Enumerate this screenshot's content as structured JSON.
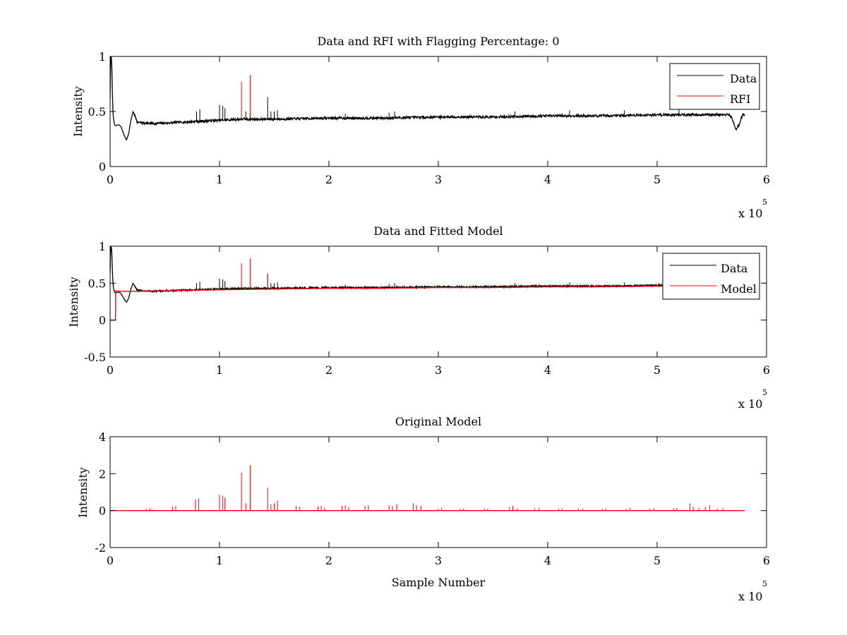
{
  "figure": {
    "background": "#ffffff",
    "axis_color": "#000000",
    "data_color": "#000000",
    "rfi_color": "#ff0000"
  },
  "chart_data": [
    {
      "type": "line",
      "title": "Data and RFI with Flagging Percentage: 0",
      "xlabel": "",
      "ylabel": "Intensity",
      "xlim": [
        0,
        6
      ],
      "ylim": [
        0,
        1
      ],
      "x_ticks": [
        "0",
        "1",
        "2",
        "3",
        "4",
        "5",
        "6"
      ],
      "y_ticks": [
        "0",
        "0.5",
        "1"
      ],
      "x_multiplier": {
        "base": "x 10",
        "exponent": "5"
      },
      "grid": false,
      "legend": {
        "position": "top-right",
        "entries": [
          "Data",
          "RFI"
        ]
      },
      "series": [
        {
          "name": "Data",
          "color": "#000000",
          "x": [
            0,
            0.005,
            0.01,
            0.015,
            0.02,
            0.025,
            0.03,
            0.04,
            0.05,
            0.08,
            0.1,
            0.13,
            0.15,
            0.17,
            0.19,
            0.21,
            0.25,
            0.4,
            0.6,
            0.8,
            1.0,
            1.2,
            1.5,
            2.0,
            2.5,
            3.0,
            3.5,
            4.0,
            4.5,
            5.0,
            5.5,
            5.65,
            5.68,
            5.72,
            5.75,
            5.78,
            5.8
          ],
          "y": [
            0.62,
            0.98,
            1.0,
            0.95,
            0.7,
            0.52,
            0.44,
            0.38,
            0.37,
            0.38,
            0.36,
            0.28,
            0.24,
            0.3,
            0.42,
            0.5,
            0.4,
            0.39,
            0.4,
            0.41,
            0.42,
            0.43,
            0.43,
            0.44,
            0.44,
            0.45,
            0.45,
            0.46,
            0.46,
            0.47,
            0.47,
            0.47,
            0.45,
            0.34,
            0.38,
            0.47,
            0.47
          ],
          "spikes_x": [
            0.79,
            0.82,
            1.0,
            1.03,
            1.05,
            1.2,
            1.24,
            1.28,
            1.44,
            1.47,
            1.5,
            1.53,
            2.15,
            2.55,
            2.6,
            3.7,
            4.2,
            4.7,
            5.2
          ],
          "spikes_y": [
            0.5,
            0.52,
            0.56,
            0.55,
            0.53,
            0.5,
            0.5,
            0.48,
            0.63,
            0.5,
            0.5,
            0.51,
            0.48,
            0.49,
            0.5,
            0.5,
            0.51,
            0.51,
            0.52
          ]
        },
        {
          "name": "RFI",
          "color": "#ff0000",
          "spikes_x": [
            1.2,
            1.28
          ],
          "spikes_y": [
            0.77,
            0.83
          ]
        }
      ]
    },
    {
      "type": "line",
      "title": "Data and Fitted Model",
      "xlabel": "",
      "ylabel": "Intensity",
      "xlim": [
        0,
        6
      ],
      "ylim": [
        -0.5,
        1
      ],
      "x_ticks": [
        "0",
        "1",
        "2",
        "3",
        "4",
        "5",
        "6"
      ],
      "y_ticks": [
        "-0.5",
        "0",
        "0.5",
        "1"
      ],
      "x_multiplier": {
        "base": "x 10",
        "exponent": "5"
      },
      "grid": false,
      "legend": {
        "position": "top-right",
        "entries": [
          "Data",
          "Model"
        ]
      },
      "series": [
        {
          "name": "Data",
          "color": "#000000",
          "x": [
            0,
            0.005,
            0.01,
            0.015,
            0.02,
            0.025,
            0.03,
            0.04,
            0.05,
            0.08,
            0.1,
            0.13,
            0.15,
            0.17,
            0.19,
            0.21,
            0.25,
            0.4,
            0.6,
            0.8,
            1.0,
            1.2,
            1.5,
            2.0,
            2.5,
            3.0,
            3.5,
            4.0,
            4.5,
            5.0,
            5.1
          ],
          "y": [
            0.62,
            0.98,
            1.0,
            0.95,
            0.7,
            0.52,
            0.44,
            0.38,
            0.37,
            0.38,
            0.36,
            0.28,
            0.24,
            0.3,
            0.42,
            0.5,
            0.4,
            0.39,
            0.4,
            0.41,
            0.42,
            0.43,
            0.43,
            0.44,
            0.44,
            0.45,
            0.45,
            0.46,
            0.46,
            0.47,
            0.47
          ],
          "spikes_x": [
            0.79,
            0.82,
            1.0,
            1.03,
            1.05,
            1.44,
            1.47,
            1.5,
            1.53,
            2.15,
            2.55,
            2.6,
            3.7,
            4.2,
            4.7
          ],
          "spikes_y": [
            0.5,
            0.52,
            0.56,
            0.55,
            0.53,
            0.63,
            0.5,
            0.5,
            0.51,
            0.48,
            0.49,
            0.5,
            0.5,
            0.51,
            0.51
          ]
        },
        {
          "name": "Model",
          "color": "#ff0000",
          "x": [
            0,
            0.05,
            0.05,
            0.08,
            0.3,
            0.6,
            1.0,
            1.5,
            2.0,
            2.5,
            3.0,
            3.5,
            4.0,
            4.5,
            5.0,
            5.1
          ],
          "y": [
            0,
            0,
            0.4,
            0.39,
            0.39,
            0.4,
            0.41,
            0.42,
            0.43,
            0.43,
            0.44,
            0.44,
            0.45,
            0.45,
            0.46,
            0.46
          ],
          "spikes_x": [
            0.05,
            1.2,
            1.28,
            1.44
          ],
          "spikes_y": [
            0.4,
            0.77,
            0.83,
            0.63
          ]
        }
      ]
    },
    {
      "type": "line",
      "title": "Original Model",
      "xlabel": "Sample Number",
      "ylabel": "Intensity",
      "xlim": [
        0,
        6
      ],
      "ylim": [
        -2,
        4
      ],
      "x_ticks": [
        "0",
        "1",
        "2",
        "3",
        "4",
        "5",
        "6"
      ],
      "y_ticks": [
        "-2",
        "0",
        "2",
        "4"
      ],
      "x_multiplier": {
        "base": "x 10",
        "exponent": "5"
      },
      "grid": false,
      "series": [
        {
          "color": "#ff0000",
          "baseline": 0,
          "x_range": [
            0,
            5.8
          ],
          "spikes_x": [
            0.33,
            0.36,
            0.38,
            0.57,
            0.6,
            0.78,
            0.81,
            1.0,
            1.03,
            1.05,
            1.2,
            1.24,
            1.28,
            1.44,
            1.47,
            1.5,
            1.53,
            1.7,
            1.73,
            1.9,
            1.93,
            1.96,
            2.12,
            2.15,
            2.18,
            2.33,
            2.36,
            2.55,
            2.58,
            2.62,
            2.77,
            2.8,
            2.84,
            3.0,
            3.03,
            3.2,
            3.23,
            3.42,
            3.45,
            3.65,
            3.68,
            3.72,
            3.88,
            3.92,
            4.1,
            4.13,
            4.28,
            4.32,
            4.5,
            4.53,
            4.72,
            4.75,
            4.93,
            4.97,
            5.15,
            5.18,
            5.3,
            5.33,
            5.38,
            5.44,
            5.48,
            5.55,
            5.6
          ],
          "spikes_y": [
            0.1,
            0.12,
            0.1,
            0.2,
            0.25,
            0.6,
            0.65,
            0.85,
            0.8,
            0.7,
            2.05,
            0.4,
            2.45,
            1.25,
            0.35,
            0.4,
            0.55,
            0.25,
            0.2,
            0.2,
            0.25,
            0.15,
            0.25,
            0.3,
            0.2,
            0.25,
            0.3,
            0.3,
            0.25,
            0.35,
            0.4,
            0.3,
            0.25,
            0.1,
            0.15,
            0.1,
            0.1,
            0.12,
            0.1,
            0.2,
            0.25,
            0.1,
            0.12,
            0.15,
            0.1,
            0.12,
            0.1,
            0.1,
            0.1,
            0.12,
            0.1,
            0.15,
            0.1,
            0.12,
            0.12,
            0.15,
            0.4,
            0.2,
            0.15,
            0.2,
            0.3,
            0.1,
            0.12
          ]
        }
      ]
    }
  ]
}
